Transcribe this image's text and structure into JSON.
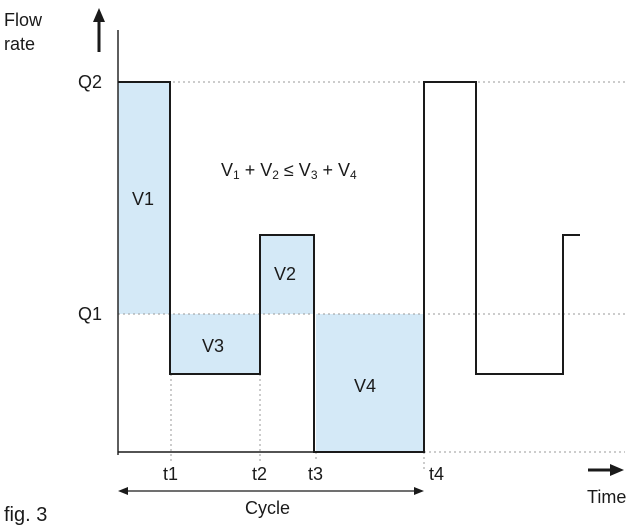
{
  "figure_label": "fig. 3",
  "axes": {
    "y_label_line1": "Flow",
    "y_label_line2": "rate",
    "x_label": "Time"
  },
  "levels": {
    "q2": "Q2",
    "q1": "Q1"
  },
  "times": {
    "t1": "t1",
    "t2": "t2",
    "t3": "t3",
    "t4": "t4"
  },
  "cycle_label": "Cycle",
  "regions": {
    "v1": "V1",
    "v2": "V2",
    "v3": "V3",
    "v4": "V4"
  },
  "equation": {
    "p1": "V",
    "s1": "1",
    "p2": " + V",
    "s2": "2",
    "p3": " ≤ V",
    "s3": "3",
    "p4": " + V",
    "s4": "4"
  },
  "colors": {
    "region_fill": "#d4e9f7",
    "line": "#1a1a1a",
    "dotted": "#9a9a9a"
  }
}
